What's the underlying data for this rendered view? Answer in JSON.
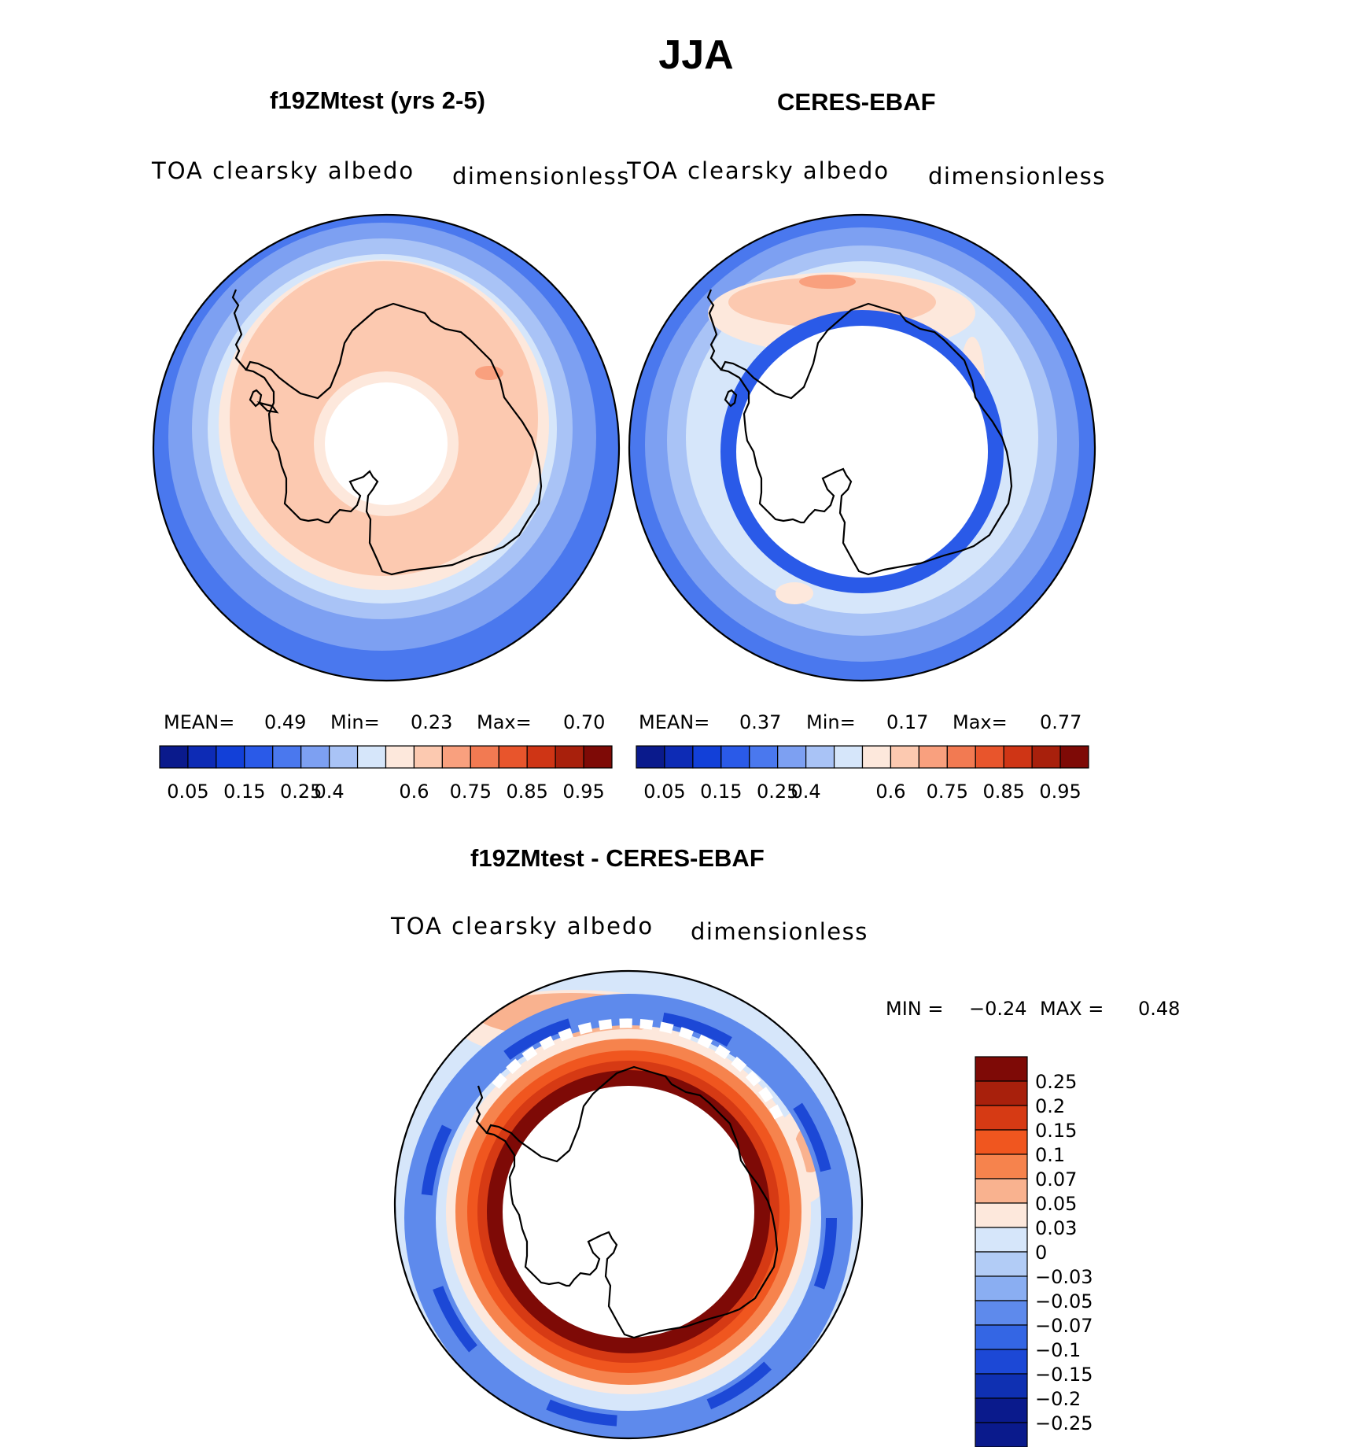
{
  "title": "JJA",
  "panels": [
    {
      "heading": "f19ZMtest (yrs 2-5)",
      "variable": "TOA clearsky albedo",
      "units": "dimensionless",
      "stats": {
        "mean_label": "MEAN=",
        "mean": "0.49",
        "min_label": "Min=",
        "min": "0.23",
        "max_label": "Max=",
        "max": "0.70"
      }
    },
    {
      "heading": "CERES-EBAF",
      "variable": "TOA clearsky albedo",
      "units": "dimensionless",
      "stats": {
        "mean_label": "MEAN=",
        "mean": "0.37",
        "min_label": "Min=",
        "min": "0.17",
        "max_label": "Max=",
        "max": "0.77"
      }
    }
  ],
  "colorbar": {
    "colors": [
      "#0a1a8c",
      "#0d2bb5",
      "#1240d8",
      "#2a5ae8",
      "#4a78ee",
      "#7da0f2",
      "#a9c3f6",
      "#d6e6fa",
      "#fde8dc",
      "#fcc9b0",
      "#f9a07e",
      "#f27a52",
      "#e8552c",
      "#cf3515",
      "#a8200c",
      "#7e0a06"
    ],
    "ticks": [
      "0.05",
      "0.15",
      "0.25",
      "0.4",
      "0.6",
      "0.75",
      "0.85",
      "0.95"
    ]
  },
  "diff": {
    "heading": "f19ZMtest - CERES-EBAF",
    "variable": "TOA clearsky albedo",
    "units": "dimensionless",
    "min_label": "MIN =",
    "min": "−0.24",
    "max_label": "MAX =",
    "max": "0.48",
    "colorbar": {
      "colors": [
        "#7e0a06",
        "#a8200c",
        "#d63a14",
        "#f0561f",
        "#f6834d",
        "#f9b28f",
        "#fde8dc",
        "#d6e6fa",
        "#b2ccf6",
        "#8aaef2",
        "#5e8aec",
        "#3466e4",
        "#1c48d6",
        "#0f30b2",
        "#0a1a8c"
      ],
      "labels": [
        "0.25",
        "0.2",
        "0.15",
        "0.1",
        "0.07",
        "0.05",
        "0.03",
        "0",
        "−0.03",
        "−0.05",
        "−0.07",
        "−0.1",
        "−0.15",
        "−0.2",
        "−0.25"
      ]
    }
  }
}
